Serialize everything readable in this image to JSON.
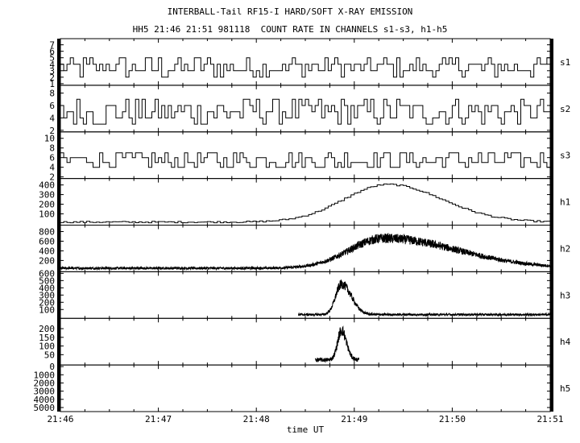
{
  "title_line1": "INTERBALL-Tail RF15-I HARD/SOFT X-RAY EMISSION",
  "title_line2": "HH5 21:46 21:51 981118  COUNT RATE IN CHANNELS s1-s3, h1-h5",
  "chart_data": {
    "type": "line",
    "title": "INTERBALL-Tail RF15-I HARD/SOFT X-RAY EMISSION",
    "subtitle": "HH5 21:46 21:51 981118  COUNT RATE IN CHANNELS s1-s3, h1-h5",
    "xlabel": "time UT",
    "x_range_minutes": [
      0,
      5
    ],
    "x_ticks": [
      "21:46",
      "21:47",
      "21:48",
      "21:49",
      "21:50",
      "21:51"
    ],
    "panels": [
      {
        "name": "s1",
        "y_ticks": [
          1,
          2,
          3,
          4,
          5,
          6,
          7
        ],
        "ylim": [
          1,
          7.7
        ],
        "style": "step",
        "data_start": 0.0,
        "data_end": 5.0,
        "baseline": 3.5,
        "noise": 1.6,
        "peak": null
      },
      {
        "name": "s2",
        "y_ticks": [
          2,
          4,
          6,
          8
        ],
        "ylim": [
          2,
          9
        ],
        "style": "step",
        "data_start": 0.0,
        "data_end": 5.0,
        "baseline": 5,
        "noise": 2.2,
        "peak": null
      },
      {
        "name": "s3",
        "y_ticks": [
          2,
          4,
          6,
          8,
          10
        ],
        "ylim": [
          2,
          11
        ],
        "style": "step",
        "data_start": 0.0,
        "data_end": 5.0,
        "baseline": 5.5,
        "noise": 2.0,
        "peak": null
      },
      {
        "name": "h1",
        "y_ticks": [
          100,
          200,
          300,
          400
        ],
        "ylim": [
          0,
          450
        ],
        "style": "step",
        "data_start": 0.0,
        "data_end": 5.0,
        "baseline": 15,
        "noise": 8,
        "peak": {
          "center": 3.35,
          "amp": 390,
          "rise": 0.45,
          "decay": 0.55
        }
      },
      {
        "name": "h2",
        "y_ticks": [
          200,
          400,
          600,
          800
        ],
        "ylim": [
          0,
          900
        ],
        "style": "noisy",
        "data_start": 0.0,
        "data_end": 5.0,
        "baseline": 40,
        "noise": 25,
        "peak": {
          "center": 3.3,
          "amp": 620,
          "rise": 0.35,
          "decay": 0.75
        }
      },
      {
        "name": "h3",
        "y_ticks": [
          100,
          200,
          300,
          400,
          500,
          600
        ],
        "ylim": [
          0,
          600
        ],
        "style": "noisy",
        "data_start": 2.43,
        "data_end": 5.0,
        "baseline": 30,
        "noise": 15,
        "peak": {
          "center": 2.87,
          "amp": 420,
          "rise": 0.06,
          "decay": 0.1
        }
      },
      {
        "name": "h4",
        "y_ticks": [
          50,
          100,
          150,
          200
        ],
        "ylim": [
          0,
          250
        ],
        "style": "noisy",
        "data_start": 2.6,
        "data_end": 3.05,
        "baseline": 20,
        "noise": 12,
        "peak": {
          "center": 2.87,
          "amp": 170,
          "rise": 0.04,
          "decay": 0.05
        }
      },
      {
        "name": "h5",
        "y_ticks": [
          0,
          1000,
          2000,
          3000,
          4000,
          5000
        ],
        "ylim": [
          0,
          5300
        ],
        "style": "none",
        "inverted": true,
        "data_start": null,
        "data_end": null,
        "baseline": 0,
        "noise": 0,
        "peak": null
      }
    ]
  }
}
